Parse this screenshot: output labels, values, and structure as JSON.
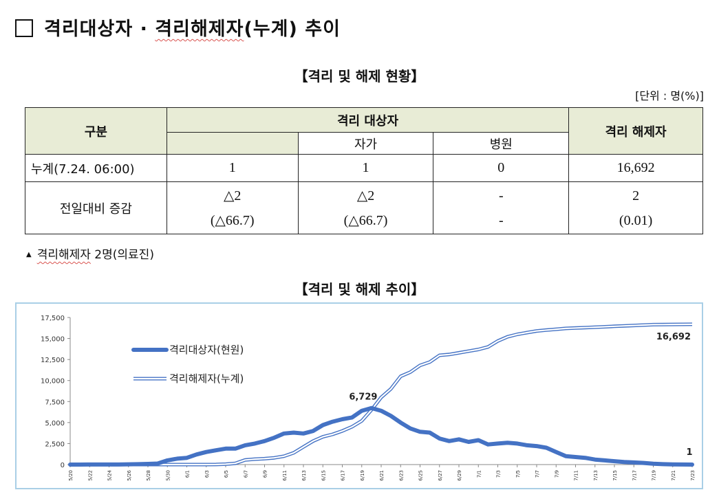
{
  "heading": {
    "part1": "격리대상자 · ",
    "part2": "격리해제자",
    "part3": "(누계) 추이"
  },
  "table": {
    "title": "【격리 및 해제 현황】",
    "unit": "[단위 : 명(%)]",
    "headers": {
      "category": "구분",
      "isolated": "격리 대상자",
      "self": "자가",
      "hospital": "병원",
      "released": "격리 해제자"
    },
    "rows": [
      {
        "label": "누계(7.24. 06:00)",
        "isolated": "1",
        "self": "1",
        "hospital": "0",
        "released": "16,692"
      },
      {
        "label": "전일대비 증감",
        "isolated": [
          "△2",
          "(△66.7)"
        ],
        "self": [
          "△2",
          "(△66.7)"
        ],
        "hospital": [
          "-",
          "-"
        ],
        "released": [
          "2",
          "(0.01)"
        ]
      }
    ]
  },
  "footnote": {
    "text_a": "격리해제자",
    "text_b": " 2명(의료진)"
  },
  "chart_title": "【격리 및 해제 추이】",
  "colors": {
    "series": "#4472c4",
    "frame": "#a9cfe6",
    "table_header": "#e8ecd6"
  },
  "chart_data": {
    "type": "line",
    "x": [
      "5/20",
      "5/21",
      "5/22",
      "5/23",
      "5/24",
      "5/25",
      "5/26",
      "5/27",
      "5/28",
      "5/29",
      "5/30",
      "5/31",
      "6/1",
      "6/2",
      "6/3",
      "6/4",
      "6/5",
      "6/6",
      "6/7",
      "6/8",
      "6/9",
      "6/10",
      "6/11",
      "6/12",
      "6/13",
      "6/14",
      "6/15",
      "6/16",
      "6/17",
      "6/18",
      "6/19",
      "6/20",
      "6/21",
      "6/22",
      "6/23",
      "6/24",
      "6/25",
      "6/26",
      "6/27",
      "6/28",
      "6/29",
      "6/30",
      "7/1",
      "7/2",
      "7/3",
      "7/4",
      "7/5",
      "7/6",
      "7/7",
      "7/8",
      "7/9",
      "7/10",
      "7/11",
      "7/12",
      "7/13",
      "7/14",
      "7/15",
      "7/16",
      "7/17",
      "7/18",
      "7/19",
      "7/20",
      "7/21",
      "7/22",
      "7/23"
    ],
    "x_tick_labels": [
      "5/20",
      "5/22",
      "5/24",
      "5/26",
      "5/28",
      "5/30",
      "6/1",
      "6/3",
      "6/5",
      "6/7",
      "6/9",
      "6/11",
      "6/13",
      "6/15",
      "6/17",
      "6/19",
      "6/21",
      "6/23",
      "6/25",
      "6/27",
      "6/29",
      "7/1",
      "7/3",
      "7/5",
      "7/7",
      "7/9",
      "7/11",
      "7/13",
      "7/15",
      "7/17",
      "7/19",
      "7/21",
      "7/23"
    ],
    "ylim": [
      0,
      17500
    ],
    "y_ticks": [
      "0",
      "2,500",
      "5,000",
      "7,500",
      "10,000",
      "12,500",
      "15,000",
      "17,500"
    ],
    "grid": false,
    "legend_placement": "upper-left",
    "series": [
      {
        "name": "격리대상자(현원)",
        "style": "thick",
        "values": [
          2,
          3,
          5,
          5,
          7,
          10,
          30,
          50,
          80,
          120,
          500,
          700,
          800,
          1200,
          1500,
          1700,
          1900,
          1900,
          2300,
          2500,
          2800,
          3200,
          3700,
          3800,
          3700,
          4000,
          4700,
          5100,
          5400,
          5600,
          6400,
          6729,
          6400,
          5800,
          5000,
          4300,
          3900,
          3800,
          3100,
          2800,
          3000,
          2700,
          2900,
          2400,
          2500,
          2600,
          2500,
          2300,
          2200,
          2000,
          1500,
          1000,
          900,
          800,
          600,
          500,
          400,
          300,
          250,
          200,
          100,
          50,
          20,
          10,
          1
        ],
        "annotation": {
          "label": "6,729"
        }
      },
      {
        "name": "격리해제자(누계)",
        "style": "double",
        "values": [
          0,
          0,
          0,
          0,
          0,
          0,
          0,
          0,
          0,
          0,
          0,
          0,
          0,
          0,
          0,
          10,
          50,
          150,
          550,
          650,
          700,
          800,
          1000,
          1400,
          2100,
          2800,
          3300,
          3600,
          4000,
          4500,
          5200,
          6500,
          8000,
          9000,
          10500,
          11000,
          11800,
          12200,
          13000,
          13100,
          13300,
          13500,
          13700,
          14000,
          14700,
          15200,
          15500,
          15700,
          15900,
          16000,
          16100,
          16200,
          16250,
          16300,
          16350,
          16400,
          16450,
          16500,
          16550,
          16600,
          16650,
          16660,
          16670,
          16680,
          16692
        ],
        "annotation": {
          "label": "16,692"
        }
      }
    ],
    "end_label_current": "1"
  }
}
